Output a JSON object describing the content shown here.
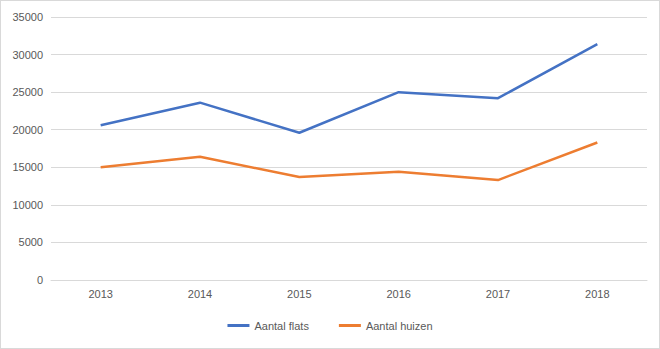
{
  "chart_data": {
    "type": "line",
    "categories": [
      "2013",
      "2014",
      "2015",
      "2016",
      "2017",
      "2018"
    ],
    "series": [
      {
        "name": "Aantal flats",
        "color": "#4472c4",
        "values": [
          20600,
          23600,
          19600,
          25000,
          24200,
          31400
        ]
      },
      {
        "name": "Aantal huizen",
        "color": "#ed7d31",
        "values": [
          15000,
          16400,
          13700,
          14400,
          13300,
          18300
        ]
      }
    ],
    "ylim": [
      0,
      35000
    ],
    "yticks": [
      0,
      5000,
      10000,
      15000,
      20000,
      25000,
      30000,
      35000
    ],
    "grid": true,
    "legend": "bottom"
  }
}
